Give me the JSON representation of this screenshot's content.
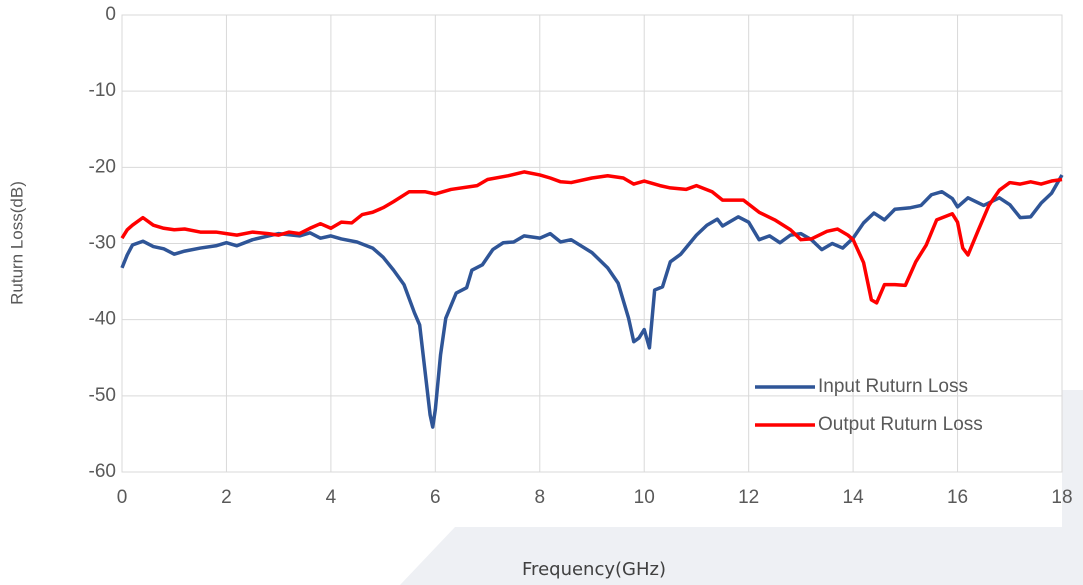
{
  "chart_data": {
    "type": "line",
    "x_label": "Frequency(GHz)",
    "y_label": "Ruturn Loss(dB)",
    "xlim": [
      0,
      18
    ],
    "xticks": [
      0,
      2,
      4,
      6,
      8,
      10,
      12,
      14,
      16,
      18
    ],
    "ylim": [
      -60,
      0
    ],
    "yticks": [
      0,
      -10,
      -20,
      -30,
      -40,
      -50,
      -60
    ],
    "grid": true,
    "legend": "lower right",
    "series": [
      {
        "name": "Input Ruturn Loss",
        "color": "#2f5597",
        "x": [
          0,
          0.1,
          0.2,
          0.4,
          0.6,
          0.8,
          1.0,
          1.2,
          1.5,
          1.8,
          2.0,
          2.2,
          2.5,
          3.0,
          3.4,
          3.6,
          3.8,
          4.0,
          4.2,
          4.5,
          4.8,
          5.0,
          5.2,
          5.4,
          5.6,
          5.7,
          5.8,
          5.9,
          5.95,
          6.0,
          6.1,
          6.2,
          6.4,
          6.6,
          6.7,
          6.9,
          7.1,
          7.3,
          7.5,
          7.7,
          8.0,
          8.2,
          8.4,
          8.6,
          9.0,
          9.3,
          9.5,
          9.7,
          9.8,
          9.9,
          10.0,
          10.1,
          10.2,
          10.35,
          10.5,
          10.7,
          11.0,
          11.2,
          11.4,
          11.5,
          11.8,
          12.0,
          12.2,
          12.4,
          12.6,
          12.8,
          13.0,
          13.2,
          13.4,
          13.6,
          13.8,
          14.0,
          14.2,
          14.4,
          14.6,
          14.8,
          15.1,
          15.3,
          15.5,
          15.7,
          15.9,
          16.0,
          16.2,
          16.5,
          16.8,
          17.0,
          17.2,
          17.4,
          17.6,
          17.8,
          18.0
        ],
        "values": [
          -33.2,
          -31.5,
          -30.2,
          -29.7,
          -30.4,
          -30.7,
          -31.4,
          -31,
          -30.6,
          -30.3,
          -29.9,
          -30.3,
          -29.5,
          -28.7,
          -29,
          -28.6,
          -29.3,
          -29,
          -29.4,
          -29.8,
          -30.6,
          -31.8,
          -33.5,
          -35.4,
          -39.1,
          -40.7,
          -46.6,
          -52.5,
          -54.1,
          -51.8,
          -44.6,
          -39.8,
          -36.5,
          -35.8,
          -33.5,
          -32.8,
          -30.8,
          -29.9,
          -29.8,
          -29,
          -29.3,
          -28.7,
          -29.8,
          -29.5,
          -31.2,
          -33.2,
          -35.2,
          -39.8,
          -42.9,
          -42.4,
          -41.3,
          -43.7,
          -36.1,
          -35.7,
          -32.4,
          -31.4,
          -28.9,
          -27.6,
          -26.8,
          -27.7,
          -26.5,
          -27.2,
          -29.5,
          -29,
          -29.9,
          -28.9,
          -28.7,
          -29.5,
          -30.8,
          -30,
          -30.6,
          -29.3,
          -27.3,
          -26,
          -26.9,
          -25.5,
          -25.3,
          -25,
          -23.6,
          -23.2,
          -24.1,
          -25.2,
          -24,
          -25,
          -24,
          -24.9,
          -26.6,
          -26.5,
          -24.7,
          -23.4,
          -21
        ]
      },
      {
        "name": "Output Ruturn Loss",
        "color": "#ff0000",
        "x": [
          0,
          0.1,
          0.2,
          0.4,
          0.6,
          0.8,
          1.0,
          1.2,
          1.5,
          1.8,
          2.0,
          2.2,
          2.5,
          2.8,
          3.0,
          3.2,
          3.4,
          3.6,
          3.8,
          4.0,
          4.2,
          4.4,
          4.6,
          4.8,
          5.0,
          5.2,
          5.5,
          5.8,
          6.0,
          6.3,
          6.8,
          7.0,
          7.4,
          7.7,
          8.0,
          8.2,
          8.4,
          8.6,
          9.0,
          9.3,
          9.6,
          9.8,
          10.0,
          10.3,
          10.5,
          10.8,
          11.0,
          11.3,
          11.5,
          11.9,
          12.2,
          12.5,
          12.8,
          13.0,
          13.2,
          13.5,
          13.7,
          13.9,
          14.0,
          14.2,
          14.35,
          14.45,
          14.6,
          14.8,
          15.0,
          15.2,
          15.4,
          15.6,
          15.9,
          16.0,
          16.1,
          16.2,
          16.4,
          16.6,
          16.8,
          17.0,
          17.2,
          17.4,
          17.6,
          17.8,
          18.0
        ],
        "values": [
          -29.3,
          -28.2,
          -27.6,
          -26.6,
          -27.6,
          -28,
          -28.2,
          -28.1,
          -28.5,
          -28.5,
          -28.7,
          -28.9,
          -28.5,
          -28.7,
          -28.9,
          -28.5,
          -28.7,
          -28,
          -27.4,
          -28,
          -27.2,
          -27.3,
          -26.2,
          -25.9,
          -25.3,
          -24.5,
          -23.2,
          -23.2,
          -23.5,
          -22.9,
          -22.4,
          -21.6,
          -21.1,
          -20.6,
          -21,
          -21.4,
          -21.9,
          -22,
          -21.4,
          -21.1,
          -21.4,
          -22.2,
          -21.8,
          -22.4,
          -22.7,
          -22.9,
          -22.4,
          -23.2,
          -24.3,
          -24.3,
          -25.9,
          -26.9,
          -28.2,
          -29.5,
          -29.4,
          -28.4,
          -28.1,
          -28.9,
          -29.5,
          -32.5,
          -37.4,
          -37.8,
          -35.4,
          -35.4,
          -35.5,
          -32.4,
          -30.2,
          -26.9,
          -26.1,
          -27.2,
          -30.6,
          -31.5,
          -28.2,
          -25,
          -23,
          -22,
          -22.2,
          -21.9,
          -22.2,
          -21.8,
          -21.6
        ]
      }
    ]
  }
}
